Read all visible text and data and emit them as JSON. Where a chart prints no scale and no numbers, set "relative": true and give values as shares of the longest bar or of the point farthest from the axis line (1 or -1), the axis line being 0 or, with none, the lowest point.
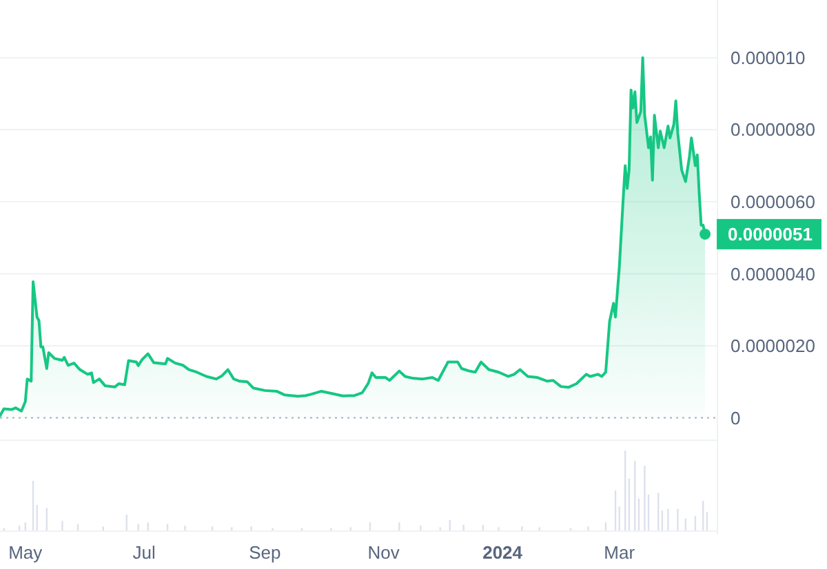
{
  "chart_data": [
    {
      "type": "area",
      "tick_labels": "y",
      "grid": "y",
      "marker": "none",
      "line_style": "solid",
      "xlim": [
        "2023-04-18",
        "2024-04-20"
      ],
      "ylim": [
        -6e-07,
        1.16e-05
      ],
      "yticks": [
        0,
        {
          "value": 2e-06,
          "label": "0.0000020"
        },
        {
          "value": 4e-06,
          "label": "0.0000040"
        },
        {
          "value": 6e-06,
          "label": "0.0000060"
        },
        {
          "value": 8e-06,
          "label": "0.0000080"
        },
        {
          "value": 1e-05,
          "label": "0.000010"
        }
      ],
      "ref_lines": [
        {
          "axis": "y",
          "value": 0,
          "line_style": "dotted",
          "color": "#a6b0c3"
        }
      ],
      "annotations": [
        {
          "text": "0.0000051",
          "x": "2024-04-14",
          "y": 5.1e-06
        }
      ],
      "series": [
        {
          "color": "#16c784",
          "x": [
            "2023-04-18",
            "2023-04-20",
            "2023-04-24",
            "2023-04-26",
            "2023-04-29",
            "2023-05-01",
            "2023-05-02",
            "2023-05-04",
            "2023-05-05",
            "2023-05-07",
            "2023-05-08",
            "2023-05-09",
            "2023-05-10",
            "2023-05-12",
            "2023-05-13",
            "2023-05-16",
            "2023-05-20",
            "2023-05-21",
            "2023-05-23",
            "2023-05-26",
            "2023-05-29",
            "2023-06-02",
            "2023-06-04",
            "2023-06-05",
            "2023-06-08",
            "2023-06-11",
            "2023-06-16",
            "2023-06-18",
            "2023-06-21",
            "2023-06-23",
            "2023-06-27",
            "2023-06-28",
            "2023-06-30",
            "2023-07-03",
            "2023-07-06",
            "2023-07-12",
            "2023-07-13",
            "2023-07-17",
            "2023-07-21",
            "2023-07-24",
            "2023-07-28",
            "2023-08-02",
            "2023-08-07",
            "2023-08-10",
            "2023-08-13",
            "2023-08-16",
            "2023-08-19",
            "2023-08-23",
            "2023-08-26",
            "2023-09-01",
            "2023-09-07",
            "2023-09-11",
            "2023-09-18",
            "2023-09-22",
            "2023-09-25",
            "2023-09-30",
            "2023-10-05",
            "2023-10-11",
            "2023-10-17",
            "2023-10-21",
            "2023-10-24",
            "2023-10-26",
            "2023-10-28",
            "2023-11-02",
            "2023-11-04",
            "2023-11-09",
            "2023-11-12",
            "2023-11-16",
            "2023-11-21",
            "2023-11-26",
            "2023-11-29",
            "2023-12-04",
            "2023-12-09",
            "2023-12-11",
            "2023-12-15",
            "2023-12-18",
            "2023-12-21",
            "2023-12-25",
            "2023-12-30",
            "2024-01-04",
            "2024-01-07",
            "2024-01-10",
            "2024-01-14",
            "2024-01-19",
            "2024-01-24",
            "2024-01-27",
            "2024-01-31",
            "2024-02-04",
            "2024-02-08",
            "2024-02-13",
            "2024-02-15",
            "2024-02-19",
            "2024-02-21",
            "2024-02-23",
            "2024-02-25",
            "2024-02-27",
            "2024-02-28",
            "2024-03-01",
            "2024-03-03",
            "2024-03-04",
            "2024-03-05",
            "2024-03-06",
            "2024-03-07",
            "2024-03-08",
            "2024-03-09",
            "2024-03-10",
            "2024-03-12",
            "2024-03-13",
            "2024-03-14",
            "2024-03-16",
            "2024-03-17",
            "2024-03-18",
            "2024-03-19",
            "2024-03-21",
            "2024-03-22",
            "2024-03-24",
            "2024-03-26",
            "2024-03-27",
            "2024-03-29",
            "2024-03-30",
            "2024-03-31",
            "2024-04-02",
            "2024-04-04",
            "2024-04-06",
            "2024-04-07",
            "2024-04-09",
            "2024-04-10",
            "2024-04-11",
            "2024-04-12",
            "2024-04-13",
            "2024-04-14"
          ],
          "values": [
            6e-08,
            2.5e-07,
            2.3e-07,
            2.8e-07,
            1.9e-07,
            4.5e-07,
            1.08e-06,
            1.02e-06,
            3.78e-06,
            2.8e-06,
            2.7e-06,
            1.97e-06,
            1.97e-06,
            1.37e-06,
            1.81e-06,
            1.65e-06,
            1.6e-06,
            1.68e-06,
            1.46e-06,
            1.52e-06,
            1.34e-06,
            1.21e-06,
            1.25e-06,
            9.8e-07,
            1.08e-06,
            8.9e-07,
            8.6e-07,
            9.5e-07,
            9.2e-07,
            1.59e-06,
            1.55e-06,
            1.45e-06,
            1.62e-06,
            1.78e-06,
            1.53e-06,
            1.5e-06,
            1.65e-06,
            1.52e-06,
            1.46e-06,
            1.34e-06,
            1.27e-06,
            1.15e-06,
            1.08e-06,
            1.17e-06,
            1.34e-06,
            1.08e-06,
            1.02e-06,
            1e-06,
            8.3e-07,
            7.6e-07,
            7.4e-07,
            6.4e-07,
            6e-07,
            6.2e-07,
            6.6e-07,
            7.4e-07,
            6.8e-07,
            6.1e-07,
            6.2e-07,
            7e-07,
            9.5e-07,
            1.25e-06,
            1.12e-06,
            1.12e-06,
            1.04e-06,
            1.3e-06,
            1.15e-06,
            1.1e-06,
            1.08e-06,
            1.12e-06,
            1.04e-06,
            1.55e-06,
            1.55e-06,
            1.37e-06,
            1.3e-06,
            1.27e-06,
            1.55e-06,
            1.34e-06,
            1.27e-06,
            1.15e-06,
            1.21e-06,
            1.34e-06,
            1.15e-06,
            1.12e-06,
            1.02e-06,
            1.04e-06,
            8.7e-07,
            8.5e-07,
            9.5e-07,
            1.21e-06,
            1.15e-06,
            1.21e-06,
            1.15e-06,
            1.27e-06,
            2.68e-06,
            3.18e-06,
            2.8e-06,
            4.2e-06,
            6.11e-06,
            7e-06,
            6.37e-06,
            6.88e-06,
            9.1e-06,
            8.6e-06,
            9.05e-06,
            8.2e-06,
            8.5e-06,
            1e-05,
            8.4e-06,
            7.5e-06,
            7.8e-06,
            6.6e-06,
            8.4e-06,
            7.5e-06,
            7.96e-06,
            7.5e-06,
            8.1e-06,
            7.77e-06,
            8.15e-06,
            8.8e-06,
            7.9e-06,
            6.88e-06,
            6.56e-06,
            7.26e-06,
            7.77e-06,
            7e-06,
            7.3e-06,
            6.24e-06,
            5.35e-06,
            5.35e-06,
            5.1e-06
          ]
        }
      ]
    },
    {
      "type": "bar",
      "relative": true,
      "tick_labels": "x",
      "grid": false,
      "xlim": [
        "2023-04-18",
        "2024-04-20"
      ],
      "xticks": [
        {
          "value": "2023-05-01",
          "label": "May"
        },
        {
          "value": "2023-07-01",
          "label": "Jul"
        },
        {
          "value": "2023-09-01",
          "label": "Sep"
        },
        {
          "value": "2023-11-01",
          "label": "Nov"
        },
        {
          "value": "2024-01-01",
          "label": "2024"
        },
        {
          "value": "2024-03-01",
          "label": "Mar"
        }
      ],
      "series": [
        {
          "color": "#dde1ec",
          "x": [
            "2023-04-20",
            "2023-04-28",
            "2023-05-01",
            "2023-05-05",
            "2023-05-07",
            "2023-05-12",
            "2023-05-20",
            "2023-05-28",
            "2023-06-10",
            "2023-06-22",
            "2023-06-28",
            "2023-07-03",
            "2023-07-13",
            "2023-07-22",
            "2023-08-05",
            "2023-08-15",
            "2023-08-25",
            "2023-09-05",
            "2023-09-20",
            "2023-10-05",
            "2023-10-15",
            "2023-10-25",
            "2023-11-09",
            "2023-11-20",
            "2023-11-30",
            "2023-12-05",
            "2023-12-12",
            "2023-12-22",
            "2023-12-30",
            "2024-01-11",
            "2024-01-20",
            "2024-02-05",
            "2024-02-14",
            "2024-02-23",
            "2024-02-28",
            "2024-03-01",
            "2024-03-04",
            "2024-03-06",
            "2024-03-09",
            "2024-03-11",
            "2024-03-14",
            "2024-03-16",
            "2024-03-21",
            "2024-03-23",
            "2024-03-26",
            "2024-03-31",
            "2024-04-04",
            "2024-04-09",
            "2024-04-13",
            "2024-04-15"
          ],
          "values": [
            0.03,
            0.06,
            0.1,
            0.62,
            0.32,
            0.28,
            0.12,
            0.08,
            0.05,
            0.2,
            0.08,
            0.1,
            0.08,
            0.06,
            0.05,
            0.04,
            0.05,
            0.03,
            0.03,
            0.03,
            0.04,
            0.1,
            0.1,
            0.06,
            0.04,
            0.13,
            0.07,
            0.07,
            0.04,
            0.05,
            0.04,
            0.03,
            0.05,
            0.1,
            0.5,
            0.3,
            1.0,
            0.65,
            0.87,
            0.4,
            0.81,
            0.45,
            0.47,
            0.25,
            0.27,
            0.27,
            0.15,
            0.18,
            0.37,
            0.23
          ]
        }
      ]
    }
  ]
}
